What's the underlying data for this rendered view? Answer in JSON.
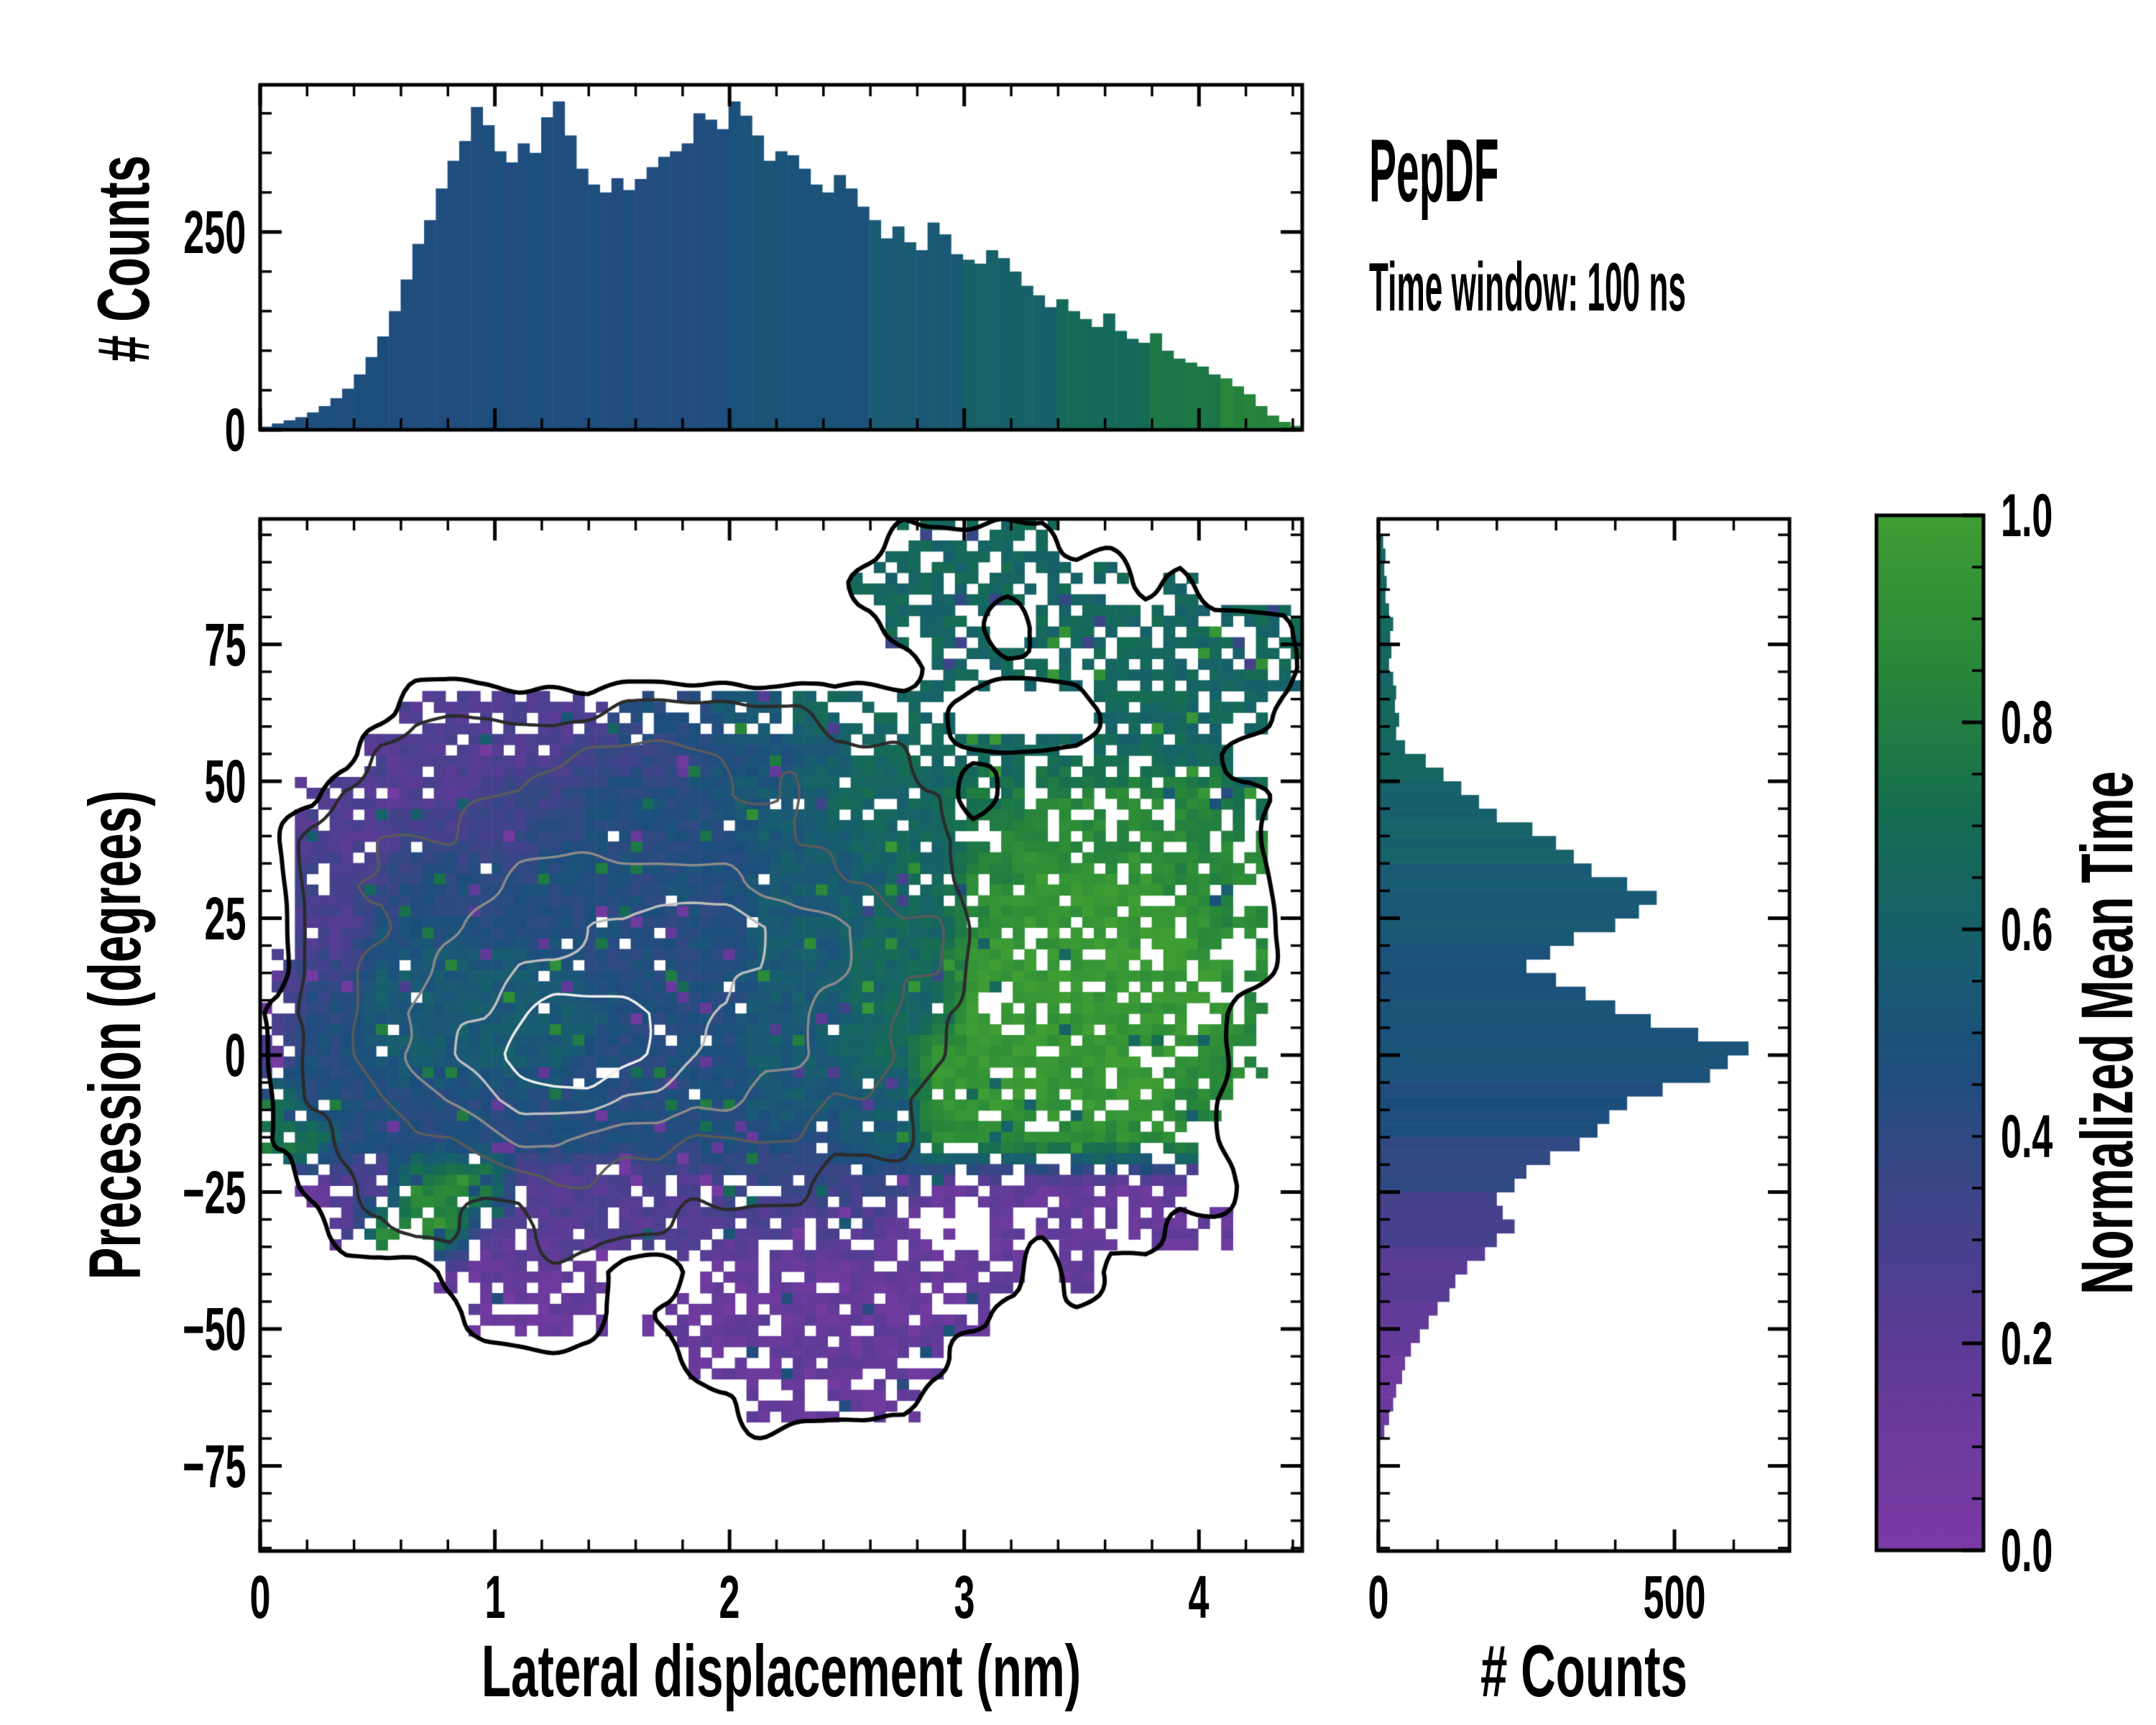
{
  "figure": {
    "title": "PepDF",
    "subtitle": "Time window: 100 ns"
  },
  "axes": {
    "top_hist": {
      "ylabel": "# Counts",
      "ytick_labels": [
        "0",
        "250"
      ],
      "ytick_values": [
        0,
        250
      ]
    },
    "main": {
      "xlabel": "Lateral displacement (nm)",
      "ylabel": "Precession (degrees)",
      "xtick_labels": [
        "0",
        "1",
        "2",
        "3",
        "4"
      ],
      "xtick_values": [
        0,
        1,
        2,
        3,
        4
      ],
      "ytick_labels": [
        "75",
        "50",
        "25",
        "0",
        "−25",
        "−50",
        "−75"
      ],
      "ytick_values": [
        75,
        50,
        25,
        0,
        -25,
        -50,
        -75
      ]
    },
    "right_hist": {
      "xlabel": "# Counts",
      "xtick_labels": [
        "0",
        "500"
      ],
      "xtick_values": [
        0,
        500
      ]
    },
    "colorbar": {
      "label": "Normalized Mean Time",
      "tick_labels": [
        "1.0",
        "0.8",
        "0.6",
        "0.4",
        "0.2",
        "0.0"
      ],
      "tick_values": [
        1.0,
        0.8,
        0.6,
        0.4,
        0.2,
        0.0
      ]
    }
  },
  "chart_data": [
    {
      "type": "bar",
      "panel": "top",
      "orientation": "vertical",
      "ylabel": "# Counts",
      "x_start": 0,
      "bin_width": 0.05,
      "xlim": [
        0,
        4.44
      ],
      "ylim": [
        0,
        436
      ],
      "yticks": [
        0,
        250
      ],
      "values": [
        4,
        8,
        12,
        16,
        22,
        30,
        40,
        52,
        70,
        92,
        118,
        150,
        190,
        235,
        265,
        305,
        340,
        365,
        408,
        385,
        352,
        338,
        362,
        350,
        395,
        415,
        372,
        330,
        310,
        300,
        318,
        303,
        317,
        332,
        345,
        352,
        362,
        400,
        392,
        380,
        415,
        397,
        372,
        340,
        352,
        347,
        330,
        310,
        300,
        322,
        305,
        282,
        265,
        242,
        257,
        237,
        227,
        262,
        247,
        222,
        215,
        210,
        227,
        217,
        200,
        182,
        170,
        155,
        165,
        150,
        140,
        130,
        147,
        125,
        115,
        110,
        122,
        100,
        90,
        85,
        80,
        70,
        65,
        55,
        45,
        30,
        18,
        10,
        5
      ],
      "mean_time": [
        0.46,
        0.46,
        0.46,
        0.46,
        0.46,
        0.46,
        0.46,
        0.46,
        0.46,
        0.46,
        0.46,
        0.46,
        0.46,
        0.46,
        0.46,
        0.46,
        0.46,
        0.46,
        0.46,
        0.46,
        0.46,
        0.46,
        0.46,
        0.46,
        0.46,
        0.46,
        0.46,
        0.46,
        0.46,
        0.46,
        0.46,
        0.46,
        0.46,
        0.46,
        0.46,
        0.46,
        0.46,
        0.46,
        0.46,
        0.46,
        0.5,
        0.5,
        0.5,
        0.5,
        0.5,
        0.5,
        0.5,
        0.5,
        0.5,
        0.5,
        0.5,
        0.5,
        0.55,
        0.55,
        0.55,
        0.55,
        0.55,
        0.55,
        0.55,
        0.55,
        0.6,
        0.6,
        0.6,
        0.6,
        0.6,
        0.6,
        0.6,
        0.6,
        0.68,
        0.68,
        0.68,
        0.68,
        0.68,
        0.68,
        0.68,
        0.68,
        0.76,
        0.76,
        0.76,
        0.76,
        0.76,
        0.76,
        0.84,
        0.84,
        0.84,
        0.84,
        0.84,
        0.84,
        0.84
      ]
    },
    {
      "type": "heatmap",
      "panel": "main",
      "xlabel": "Lateral displacement (nm)",
      "ylabel": "Precession (degrees)",
      "value_label": "Normalized Mean Time",
      "xlim": [
        0,
        4.44
      ],
      "ylim": [
        -90.6,
        97.9
      ],
      "grid_cols": 30,
      "grid_rows": 24,
      "legend": "mean_time_rows: '.'=empty bin, digit d => normalized mean time (d+0.5)/10; density_rows: relative 2D-histogram counts 0-9 used for grayscale contour levels",
      "mean_time_rows": [
        "..................66666.......",
        ".................66666666.6...",
        "..................666.66666666",
        "...................66666666666",
        "....2222224445566666....66666.",
        "...2222223334445566666666666..",
        ".2222233344445556666778888886.",
        ".2223333444444555666788888888.",
        ".3334444444444555566889999888.",
        ".2244444444444555666899999988.",
        "23355555544444555666999999998.",
        "24455555554444555666999999998.",
        "24455555544444555669999999988.",
        "7444444444444455555999999988..",
        "774444444444444445588888888...",
        ".12288822222233333311111111...",
        "..288822222222222211 1111111..",
        ".....11111..1111111111.1......",
        "......1111.1111111111.........",
        "............11111111..........",
        "..............11111...........",
        "..............................",
        "..............................",
        ".............................."
      ],
      "density_rows": [
        "..................11111.......",
        ".................11111111.1...",
        "..................111.11111111",
        "...................11111111111",
        "....1111112222221111....11111.",
        "...2222223333333222111111111..",
        "..222333444443332222 11111111.",
        ".2233344444444433322111111111.",
        ".2334445555555443322111111111.",
        ".2334455566777655433111111111.",
        ".2344556666666655433111111111.",
        "1234566788876655443211111111..",
        "1234567899876655443211111111..",
        "1223456777665544332111111111..",
        "1122334554443333222111111111..",
        ".112222233222222111111111111..",
        "..112211222211111111111111....",
        ".....11111..1111111111.1......",
        "......1111.1111111111.........",
        "............11111111..........",
        "..............11111...........",
        "..............................",
        "..............................",
        ".............................."
      ],
      "contour_levels": [
        0.5,
        1.5,
        3,
        4.5,
        6,
        7.5
      ],
      "contour_colors": [
        "#000000",
        "#2b2b2b",
        "#5a5a5a",
        "#8a8a8a",
        "#bdbdbd",
        "#efefef"
      ],
      "colormap_stops": [
        [
          0.0,
          "#7b3aa4"
        ],
        [
          0.1,
          "#6f3a9e"
        ],
        [
          0.2,
          "#5c3b96"
        ],
        [
          0.3,
          "#46418c"
        ],
        [
          0.4,
          "#2f4a82"
        ],
        [
          0.47,
          "#1c4e7c"
        ],
        [
          0.55,
          "#1a5a74"
        ],
        [
          0.62,
          "#166366"
        ],
        [
          0.7,
          "#156c54"
        ],
        [
          0.78,
          "#1f7a43"
        ],
        [
          0.87,
          "#2b8a38"
        ],
        [
          1.0,
          "#3f9e33"
        ]
      ]
    },
    {
      "type": "bar",
      "panel": "right",
      "orientation": "horizontal",
      "xlabel": "# Counts",
      "y_start": 95,
      "bin_height": 2.5,
      "xlim": [
        0,
        694
      ],
      "xticks": [
        0,
        500
      ],
      "ylim": [
        -90.6,
        97.9
      ],
      "values": [
        8,
        12,
        10,
        14,
        12,
        18,
        25,
        20,
        22,
        18,
        25,
        30,
        28,
        35,
        30,
        45,
        80,
        110,
        140,
        170,
        200,
        260,
        300,
        330,
        360,
        420,
        470,
        440,
        400,
        330,
        290,
        250,
        300,
        350,
        400,
        460,
        540,
        625,
        590,
        560,
        480,
        420,
        390,
        370,
        340,
        290,
        250,
        230,
        200,
        210,
        230,
        200,
        180,
        150,
        130,
        120,
        100,
        85,
        70,
        55,
        45,
        40,
        30,
        25,
        18,
        10
      ],
      "mean_time": [
        0.64,
        0.64,
        0.64,
        0.64,
        0.64,
        0.64,
        0.64,
        0.64,
        0.64,
        0.64,
        0.64,
        0.64,
        0.64,
        0.64,
        0.64,
        0.64,
        0.64,
        0.64,
        0.6,
        0.6,
        0.6,
        0.6,
        0.6,
        0.6,
        0.55,
        0.55,
        0.55,
        0.55,
        0.55,
        0.55,
        0.5,
        0.5,
        0.5,
        0.5,
        0.5,
        0.5,
        0.5,
        0.5,
        0.5,
        0.5,
        0.46,
        0.46,
        0.46,
        0.46,
        0.4,
        0.4,
        0.4,
        0.4,
        0.3,
        0.3,
        0.3,
        0.3,
        0.22,
        0.22,
        0.22,
        0.22,
        0.16,
        0.16,
        0.16,
        0.16,
        0.11,
        0.11,
        0.11,
        0.11,
        0.11,
        0.11
      ]
    },
    {
      "type": "colorbar",
      "label": "Normalized Mean Time",
      "range": [
        0,
        1
      ],
      "tick_step_major": 0.2,
      "tick_step_minor": 0.05
    }
  ]
}
